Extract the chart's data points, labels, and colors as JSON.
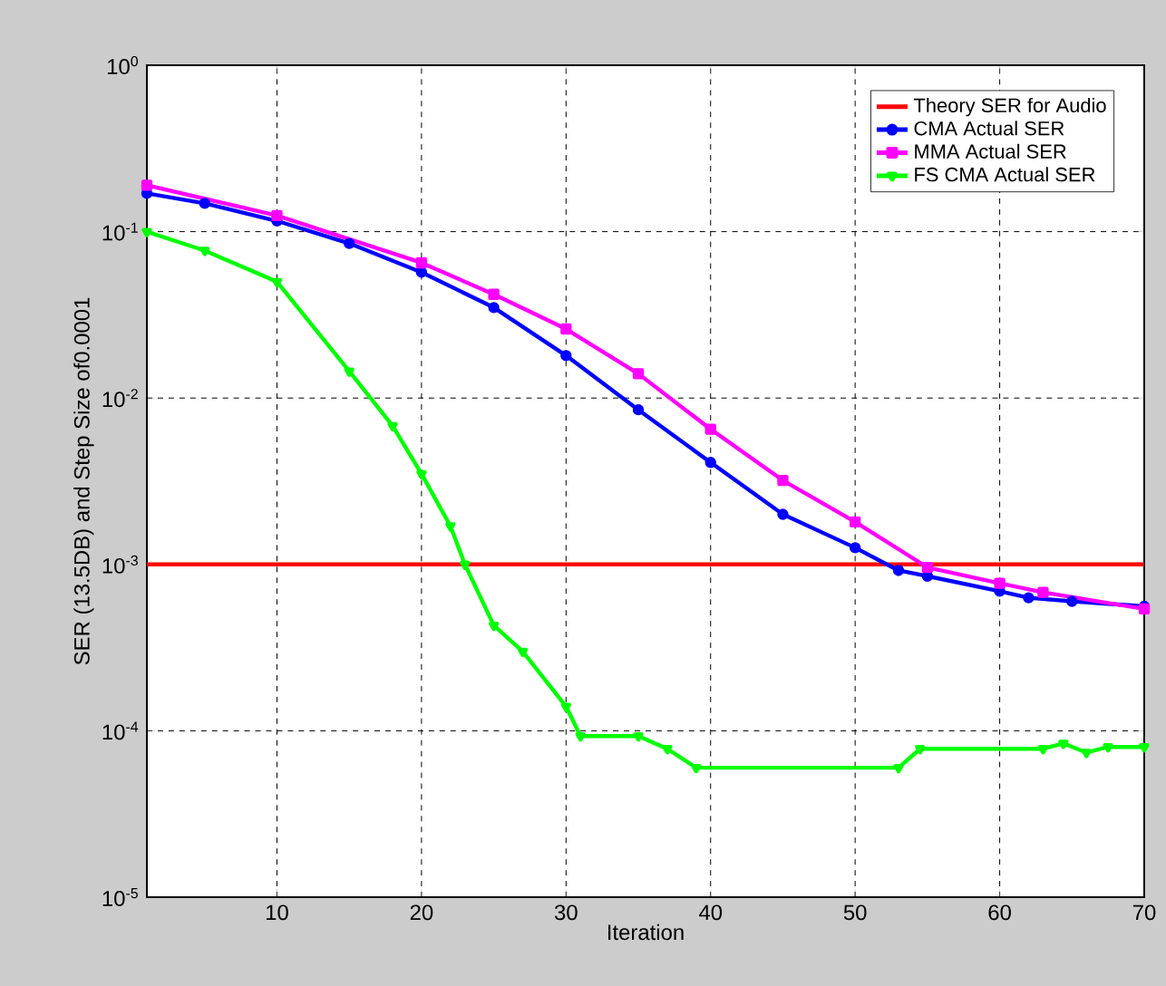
{
  "chart_data": {
    "type": "line",
    "xlabel": "Iteration",
    "ylabel": "SER (13.5DB) and Step Size of0.0001",
    "log": "y",
    "grid": true,
    "legend": "top right",
    "line_style": "solid",
    "xlim": [
      1,
      70
    ],
    "xticks": [
      10,
      20,
      30,
      40,
      50,
      60,
      70
    ],
    "ylim": [
      1e-05,
      1
    ],
    "yticks": [
      {
        "value": 1,
        "label": "10$^{0}$"
      },
      {
        "value": 0.1,
        "label": "10$^{-1}$"
      },
      {
        "value": 0.01,
        "label": "10$^{-2}$"
      },
      {
        "value": 0.001,
        "label": "10$^{-3}$"
      },
      {
        "value": 0.0001,
        "label": "10$^{-4}$"
      },
      {
        "value": 1e-05,
        "label": "10$^{-5}$"
      }
    ],
    "series": [
      {
        "name": "Theory SER for Audio",
        "color": "#ff0000",
        "marker": "none",
        "x": [
          1,
          70
        ],
        "values": [
          0.001,
          0.001
        ]
      },
      {
        "name": "CMA Actual SER",
        "color": "#0000ff",
        "marker": "circle",
        "x": [
          1,
          5,
          10,
          15,
          20,
          25,
          30,
          35,
          40,
          45,
          50,
          53,
          55,
          60,
          62,
          65,
          70
        ],
        "values": [
          0.17,
          0.148,
          0.116,
          0.085,
          0.057,
          0.035,
          0.018,
          0.0085,
          0.0041,
          0.002,
          0.00126,
          0.00092,
          0.00085,
          0.00069,
          0.00063,
          0.0006,
          0.00056
        ]
      },
      {
        "name": "MMA Actual SER",
        "color": "#ff00ff",
        "marker": "square",
        "x": [
          1,
          10,
          20,
          25,
          30,
          35,
          40,
          45,
          50,
          55,
          60,
          63,
          70
        ],
        "values": [
          0.19,
          0.125,
          0.065,
          0.042,
          0.026,
          0.014,
          0.0065,
          0.0032,
          0.0018,
          0.00096,
          0.00077,
          0.00068,
          0.00054
        ]
      },
      {
        "name": "FS CMA Actual SER",
        "color": "#00ff00",
        "marker": "triangle",
        "x": [
          1,
          5,
          10,
          15,
          18,
          20,
          22,
          23,
          25,
          27,
          30,
          31,
          35,
          37,
          39,
          53,
          54.5,
          63,
          64.4,
          66,
          67.5,
          70
        ],
        "values": [
          0.1,
          0.077,
          0.05,
          0.0145,
          0.0068,
          0.0035,
          0.0017,
          0.001,
          0.00043,
          0.0003,
          0.00014,
          9.3e-05,
          9.3e-05,
          7.8e-05,
          6e-05,
          6e-05,
          7.8e-05,
          7.8e-05,
          8.4e-05,
          7.4e-05,
          8e-05,
          8e-05
        ]
      }
    ]
  }
}
